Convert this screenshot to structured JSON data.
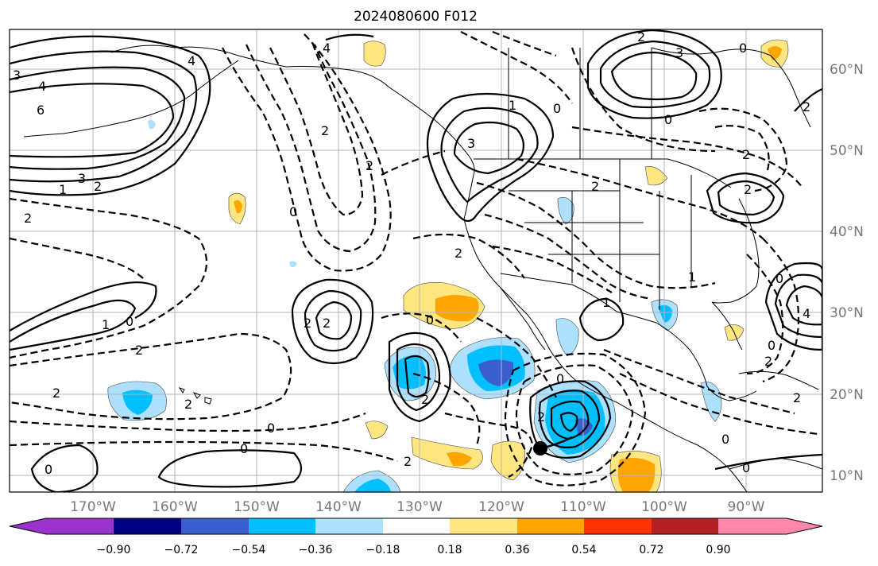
{
  "title": "2024080600 F012",
  "lon_labels": [
    "170°W",
    "160°W",
    "150°W",
    "140°W",
    "130°W",
    "120°W",
    "110°W",
    "100°W",
    "90°W"
  ],
  "lat_labels": [
    "60°N",
    "50°N",
    "40°N",
    "30°N",
    "20°N",
    "10°N"
  ],
  "contour_labels": [
    "3",
    "4",
    "6",
    "3",
    "2",
    "1",
    "2",
    "1",
    "0",
    "2",
    "4",
    "4",
    "2",
    "0",
    "1",
    "0",
    "3",
    "2",
    "2",
    "2",
    "0",
    "2",
    "2",
    "0",
    "2",
    "1",
    "0",
    "2",
    "2",
    "0",
    "2",
    "0",
    "0",
    "0",
    "2",
    "0",
    "3",
    "0",
    "2",
    "2",
    "2",
    "1",
    "4",
    "0",
    "2",
    "0",
    "2",
    "2"
  ],
  "colorbar": {
    "ticks": [
      "−0.90",
      "−0.72",
      "−0.54",
      "−0.36",
      "−0.18",
      "0.18",
      "0.36",
      "0.54",
      "0.72",
      "0.90"
    ],
    "colors": [
      "#9933cc",
      "#000080",
      "#3a5fcd",
      "#00bfff",
      "#aee0ff",
      "#ffffff",
      "#ffe680",
      "#ffa500",
      "#ff3300",
      "#b22222",
      "#ff88aa"
    ]
  },
  "storm_marker": "storm-center-dot"
}
